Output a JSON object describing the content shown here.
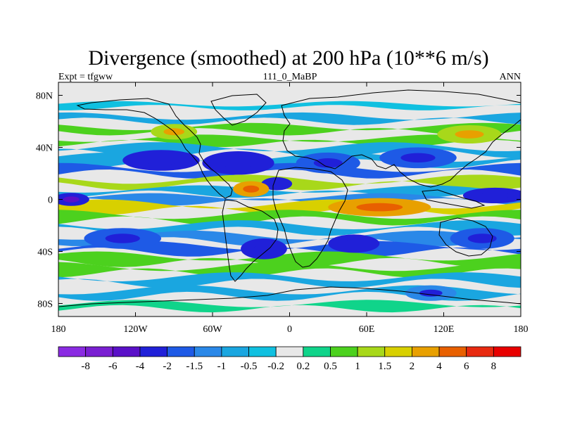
{
  "chart_data": {
    "type": "heatmap",
    "title": "Divergence (smoothed) at 200 hPa (10**6 m/s)",
    "subtitle_center": "111_0_MaBP",
    "subtitle_left": "Expt = tfgww",
    "subtitle_right": "ANN",
    "x_range": [
      -180,
      180
    ],
    "y_range": [
      -90,
      90
    ],
    "x_ticks": [
      {
        "value": -180,
        "label": "180"
      },
      {
        "value": -120,
        "label": "120W"
      },
      {
        "value": -60,
        "label": "60W"
      },
      {
        "value": 0,
        "label": "0"
      },
      {
        "value": 60,
        "label": "60E"
      },
      {
        "value": 120,
        "label": "120E"
      },
      {
        "value": 180,
        "label": "180"
      }
    ],
    "y_ticks": [
      {
        "value": 80,
        "label": "80N"
      },
      {
        "value": 40,
        "label": "40N"
      },
      {
        "value": 0,
        "label": "0"
      },
      {
        "value": -40,
        "label": "40S"
      },
      {
        "value": -80,
        "label": "80S"
      }
    ],
    "colorbar": {
      "levels": [
        "-8",
        "-6",
        "-4",
        "-2",
        "-1.5",
        "-1",
        "-0.5",
        "-0.2",
        "0.2",
        "0.5",
        "1",
        "1.5",
        "2",
        "4",
        "6",
        "8"
      ],
      "colors": [
        "#8a2be2",
        "#7a1fd2",
        "#5a10c8",
        "#2020d8",
        "#1e5ae6",
        "#2a88e8",
        "#1aa6e0",
        "#10c0e0",
        "#e8e8e8",
        "#10d48a",
        "#4cd11e",
        "#a8d81a",
        "#d8d000",
        "#e8a000",
        "#e86000",
        "#e82a10",
        "#e80000"
      ]
    },
    "bands": [
      {
        "lat": 72,
        "value": -0.4,
        "w": 3
      },
      {
        "lat": 62,
        "value": -0.6,
        "w": 4
      },
      {
        "lat": 54,
        "value": 0.5,
        "w": 4
      },
      {
        "lat": 45,
        "value": 0.8,
        "w": 4
      },
      {
        "lat": 38,
        "value": -0.6,
        "w": 5
      },
      {
        "lat": 30,
        "value": -1.0,
        "w": 5
      },
      {
        "lat": 22,
        "value": -1.6,
        "w": 5
      },
      {
        "lat": 13,
        "value": 1.2,
        "w": 5
      },
      {
        "lat": 6,
        "value": -0.8,
        "w": 4
      },
      {
        "lat": 0,
        "value": -1.4,
        "w": 4
      },
      {
        "lat": -6,
        "value": 1.6,
        "w": 5
      },
      {
        "lat": -14,
        "value": 0.8,
        "w": 5
      },
      {
        "lat": -22,
        "value": -0.7,
        "w": 5
      },
      {
        "lat": -30,
        "value": -1.2,
        "w": 5
      },
      {
        "lat": -38,
        "value": -1.8,
        "w": 5
      },
      {
        "lat": -46,
        "value": 0.6,
        "w": 5
      },
      {
        "lat": -54,
        "value": 0.8,
        "w": 5
      },
      {
        "lat": -62,
        "value": -0.6,
        "w": 5
      },
      {
        "lat": -72,
        "value": -0.9,
        "w": 5
      },
      {
        "lat": -82,
        "value": 0.4,
        "w": 4
      }
    ],
    "blobs": [
      {
        "lon": -100,
        "lat": 30,
        "value": -2.5,
        "rx": 30,
        "ry": 8
      },
      {
        "lon": -40,
        "lat": 28,
        "value": -2.2,
        "rx": 28,
        "ry": 9
      },
      {
        "lon": 30,
        "lat": 28,
        "value": -1.8,
        "rx": 25,
        "ry": 8
      },
      {
        "lon": 100,
        "lat": 32,
        "value": -1.6,
        "rx": 30,
        "ry": 8
      },
      {
        "lon": -10,
        "lat": 12,
        "value": -2.6,
        "rx": 12,
        "ry": 5
      },
      {
        "lon": -30,
        "lat": 8,
        "value": 3.0,
        "rx": 14,
        "ry": 6
      },
      {
        "lon": 70,
        "lat": -6,
        "value": 3.0,
        "rx": 40,
        "ry": 7
      },
      {
        "lon": -170,
        "lat": 0,
        "value": -3.5,
        "rx": 14,
        "ry": 5
      },
      {
        "lon": 160,
        "lat": 3,
        "value": -3.0,
        "rx": 25,
        "ry": 6
      },
      {
        "lon": -20,
        "lat": -38,
        "value": -2.8,
        "rx": 18,
        "ry": 8
      },
      {
        "lon": 50,
        "lat": -34,
        "value": -2.5,
        "rx": 20,
        "ry": 7
      },
      {
        "lon": -130,
        "lat": -30,
        "value": -1.6,
        "rx": 30,
        "ry": 8
      },
      {
        "lon": 150,
        "lat": -30,
        "value": -1.8,
        "rx": 25,
        "ry": 8
      },
      {
        "lon": 110,
        "lat": -72,
        "value": -1.2,
        "rx": 20,
        "ry": 6
      },
      {
        "lon": -90,
        "lat": 52,
        "value": 1.2,
        "rx": 18,
        "ry": 6
      },
      {
        "lon": 140,
        "lat": 50,
        "value": 1.4,
        "rx": 25,
        "ry": 7
      }
    ]
  }
}
